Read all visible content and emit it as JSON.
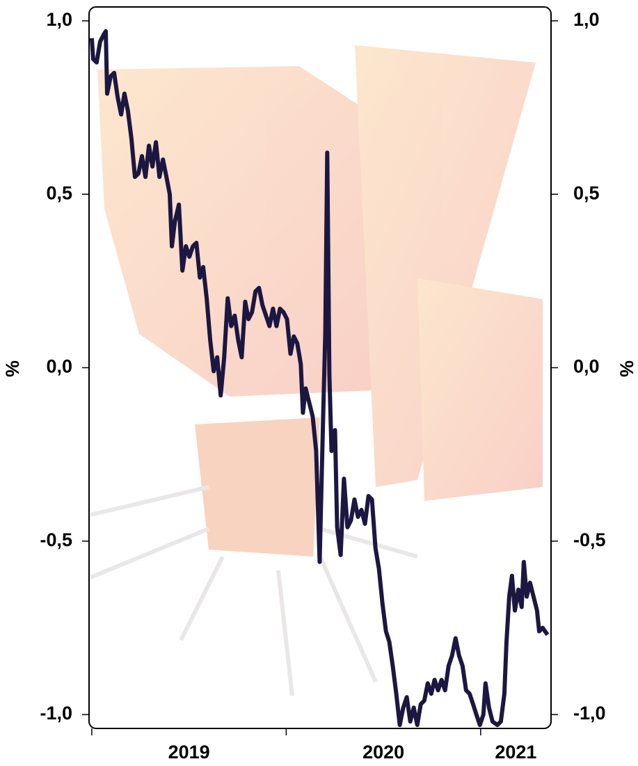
{
  "chart_data": {
    "type": "line",
    "y_label": "%",
    "xlim": [
      2018.986,
      2021.362
    ],
    "xticks": [
      2019,
      2020,
      2021
    ],
    "ylim": [
      -1.04,
      1.04
    ],
    "yticks": [
      {
        "value": 1.0,
        "label": "1,0"
      },
      {
        "value": 0.5,
        "label": "0,5"
      },
      {
        "value": 0.0,
        "label": "0,0"
      },
      {
        "value": -0.5,
        "label": "-0,5"
      },
      {
        "value": -1.0,
        "label": "-1,0"
      }
    ],
    "x": [
      2019.0,
      2019.007,
      2019.025,
      2019.043,
      2019.061,
      2019.072,
      2019.079,
      2019.097,
      2019.115,
      2019.133,
      2019.151,
      2019.168,
      2019.186,
      2019.204,
      2019.222,
      2019.24,
      2019.258,
      2019.276,
      2019.294,
      2019.312,
      2019.33,
      2019.348,
      2019.366,
      2019.384,
      2019.401,
      2019.412,
      2019.427,
      2019.448,
      2019.466,
      2019.484,
      2019.502,
      2019.52,
      2019.538,
      2019.556,
      2019.573,
      2019.591,
      2019.609,
      2019.627,
      2019.645,
      2019.663,
      2019.681,
      2019.699,
      2019.717,
      2019.735,
      2019.753,
      2019.771,
      2019.789,
      2019.806,
      2019.824,
      2019.842,
      2019.86,
      2019.878,
      2019.896,
      2019.914,
      2019.932,
      2019.95,
      2019.968,
      2019.986,
      2020.004,
      2020.022,
      2020.039,
      2020.057,
      2020.075,
      2020.086,
      2020.1,
      2020.118,
      2020.136,
      2020.154,
      2020.172,
      2020.19,
      2020.201,
      2020.211,
      2020.222,
      2020.233,
      2020.251,
      2020.262,
      2020.28,
      2020.297,
      2020.315,
      2020.333,
      2020.351,
      2020.369,
      2020.387,
      2020.405,
      2020.423,
      2020.441,
      2020.459,
      2020.477,
      2020.495,
      2020.513,
      2020.53,
      2020.548,
      2020.566,
      2020.584,
      2020.602,
      2020.62,
      2020.638,
      2020.656,
      2020.674,
      2020.692,
      2020.71,
      2020.728,
      2020.746,
      2020.763,
      2020.781,
      2020.799,
      2020.817,
      2020.835,
      2020.853,
      2020.871,
      2020.889,
      2020.907,
      2020.925,
      2020.943,
      2020.961,
      2020.978,
      2020.996,
      2021.014,
      2021.025,
      2021.043,
      2021.061,
      2021.086,
      2021.104,
      2021.122,
      2021.133,
      2021.147,
      2021.161,
      2021.176,
      2021.194,
      2021.211,
      2021.222,
      2021.237,
      2021.254,
      2021.272,
      2021.29,
      2021.301,
      2021.319,
      2021.344
    ],
    "series": [
      {
        "color": "#1c1740",
        "values": [
          0.95,
          0.89,
          0.88,
          0.94,
          0.96,
          0.97,
          0.79,
          0.84,
          0.85,
          0.78,
          0.73,
          0.79,
          0.74,
          0.66,
          0.55,
          0.56,
          0.61,
          0.55,
          0.64,
          0.58,
          0.65,
          0.55,
          0.6,
          0.55,
          0.5,
          0.35,
          0.42,
          0.47,
          0.28,
          0.35,
          0.32,
          0.35,
          0.36,
          0.26,
          0.29,
          0.2,
          0.08,
          -0.01,
          0.03,
          -0.08,
          0.03,
          0.2,
          0.12,
          0.15,
          0.08,
          0.03,
          0.19,
          0.14,
          0.16,
          0.22,
          0.23,
          0.18,
          0.15,
          0.12,
          0.17,
          0.12,
          0.17,
          0.16,
          0.14,
          0.04,
          0.09,
          0.07,
          0.01,
          -0.13,
          -0.06,
          -0.1,
          -0.14,
          -0.24,
          -0.56,
          -0.14,
          0.1,
          0.62,
          -0.02,
          -0.24,
          -0.18,
          -0.46,
          -0.54,
          -0.32,
          -0.46,
          -0.44,
          -0.38,
          -0.43,
          -0.41,
          -0.45,
          -0.37,
          -0.38,
          -0.52,
          -0.58,
          -0.68,
          -0.76,
          -0.79,
          -0.86,
          -0.94,
          -1.03,
          -0.98,
          -0.95,
          -1.02,
          -0.98,
          -1.03,
          -0.97,
          -0.96,
          -0.91,
          -0.94,
          -0.9,
          -0.93,
          -0.9,
          -0.93,
          -0.86,
          -0.83,
          -0.78,
          -0.83,
          -0.86,
          -0.93,
          -0.94,
          -0.97,
          -1.0,
          -1.03,
          -1.0,
          -0.91,
          -0.98,
          -1.02,
          -1.03,
          -1.02,
          -0.94,
          -0.79,
          -0.66,
          -0.6,
          -0.7,
          -0.64,
          -0.69,
          -0.56,
          -0.66,
          -0.62,
          -0.66,
          -0.7,
          -0.76,
          -0.75,
          -0.77
        ]
      }
    ]
  }
}
